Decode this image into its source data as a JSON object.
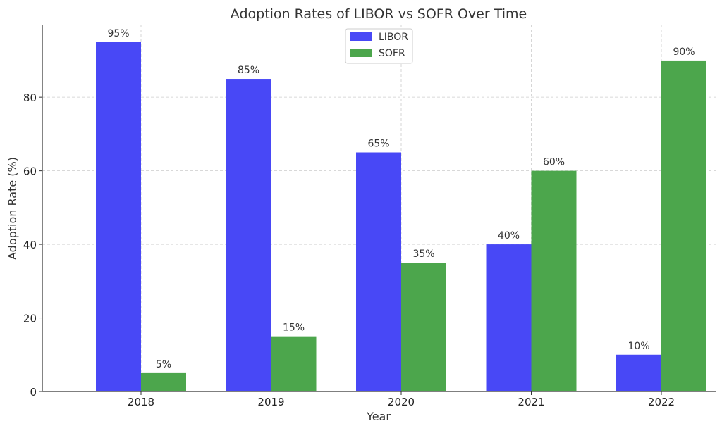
{
  "chart_data": {
    "type": "bar",
    "title": "Adoption Rates of LIBOR vs SOFR Over Time",
    "xlabel": "Year",
    "ylabel": "Adoption Rate (%)",
    "categories": [
      "2018",
      "2019",
      "2020",
      "2021",
      "2022"
    ],
    "series": [
      {
        "name": "LIBOR",
        "color": "#4848f6",
        "values": [
          95,
          85,
          65,
          40,
          10
        ],
        "labels": [
          "95%",
          "85%",
          "65%",
          "40%",
          "10%"
        ]
      },
      {
        "name": "SOFR",
        "color": "#4ca64c",
        "values": [
          5,
          15,
          35,
          60,
          90
        ],
        "labels": [
          "5%",
          "15%",
          "35%",
          "60%",
          "90%"
        ]
      }
    ],
    "ylim": [
      0,
      99.75
    ],
    "yticks": [
      0,
      20,
      40,
      60,
      80
    ],
    "grid": true,
    "legend_position": "top-center"
  }
}
